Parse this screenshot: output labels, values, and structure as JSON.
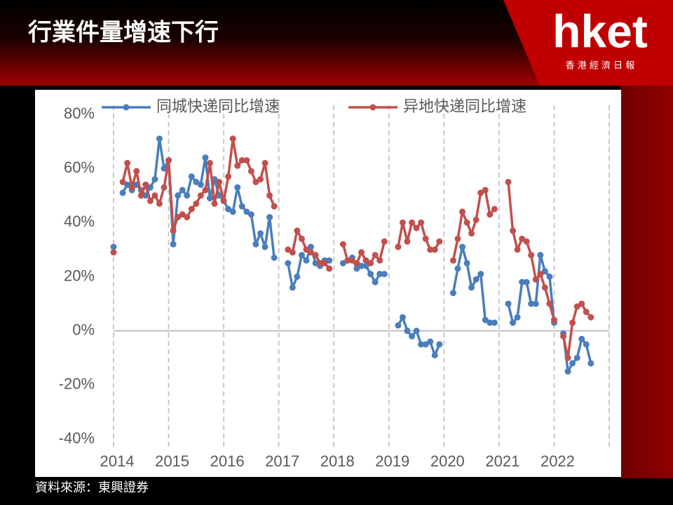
{
  "header": {
    "title": "行業件量增速下行",
    "logo": "hket",
    "logo_subtitle": "香 港 經 濟 日 報"
  },
  "chart_data": {
    "type": "line",
    "x": [
      2014,
      2014.083,
      2014.167,
      2014.25,
      2014.333,
      2014.417,
      2014.5,
      2014.583,
      2014.667,
      2014.75,
      2014.833,
      2014.917,
      2015,
      2015.083,
      2015.167,
      2015.25,
      2015.333,
      2015.417,
      2015.5,
      2015.583,
      2015.667,
      2015.75,
      2015.833,
      2015.917,
      2016,
      2016.083,
      2016.167,
      2016.25,
      2016.333,
      2016.417,
      2016.5,
      2016.583,
      2016.667,
      2016.75,
      2016.833,
      2016.917,
      2017,
      2017.083,
      2017.167,
      2017.25,
      2017.333,
      2017.417,
      2017.5,
      2017.583,
      2017.667,
      2017.75,
      2017.833,
      2017.917,
      2018,
      2018.083,
      2018.167,
      2018.25,
      2018.333,
      2018.417,
      2018.5,
      2018.583,
      2018.667,
      2018.75,
      2018.833,
      2018.917,
      2019,
      2019.083,
      2019.167,
      2019.25,
      2019.333,
      2019.417,
      2019.5,
      2019.583,
      2019.667,
      2019.75,
      2019.833,
      2019.917,
      2020,
      2020.083,
      2020.167,
      2020.25,
      2020.333,
      2020.417,
      2020.5,
      2020.583,
      2020.667,
      2020.75,
      2020.833,
      2020.917,
      2021,
      2021.083,
      2021.167,
      2021.25,
      2021.333,
      2021.417,
      2021.5,
      2021.583,
      2021.667,
      2021.75,
      2021.833,
      2021.917,
      2022,
      2022.083,
      2022.167,
      2022.25,
      2022.333,
      2022.417,
      2022.5,
      2022.583,
      2022.667
    ],
    "series": [
      {
        "name": "同城快递同比增速",
        "color": "#4a7ebb",
        "values": [
          31,
          null,
          51,
          54,
          52,
          54,
          52,
          50,
          53,
          56,
          71,
          60,
          63,
          32,
          50,
          52,
          50,
          57,
          55,
          54,
          64,
          49,
          56,
          50,
          48,
          45,
          44,
          53,
          46,
          44,
          43,
          32,
          36,
          31,
          42,
          27,
          null,
          null,
          25,
          16,
          20,
          28,
          26,
          31,
          25,
          24,
          26,
          26,
          null,
          null,
          25,
          26,
          27,
          23,
          24,
          24,
          21,
          18,
          21,
          21,
          null,
          null,
          2,
          5,
          0,
          -2,
          0,
          -5,
          -5,
          -4,
          -9,
          -5,
          null,
          null,
          14,
          23,
          31,
          25,
          16,
          19,
          21,
          4,
          3,
          3,
          null,
          null,
          10,
          3,
          5,
          18,
          18,
          10,
          10,
          28,
          22,
          20,
          3,
          null,
          -1,
          -15,
          -12,
          -10,
          -3,
          -5,
          -12
        ]
      },
      {
        "name": "异地快递同比增速",
        "color": "#c0504d",
        "values": [
          29,
          null,
          55,
          62,
          53,
          59,
          50,
          54,
          48,
          50,
          47,
          53,
          63,
          37,
          42,
          43,
          42,
          45,
          47,
          50,
          52,
          62,
          47,
          55,
          48,
          57,
          71,
          61,
          63,
          63,
          59,
          55,
          56,
          62,
          50,
          46,
          null,
          null,
          30,
          29,
          37,
          34,
          30,
          29,
          28,
          25,
          25,
          23,
          null,
          null,
          32,
          26,
          26,
          25,
          29,
          26,
          25,
          28,
          26,
          33,
          null,
          null,
          31,
          40,
          33,
          40,
          38,
          40,
          34,
          30,
          30,
          33,
          null,
          null,
          26,
          34,
          44,
          40,
          36,
          41,
          51,
          52,
          43,
          45,
          null,
          null,
          55,
          37,
          30,
          34,
          33,
          28,
          19,
          21,
          16,
          10,
          4,
          null,
          -2,
          -10,
          3,
          9,
          10,
          7,
          5
        ]
      }
    ],
    "xlim": [
      2014,
      2023
    ],
    "xticks": [
      2014,
      2015,
      2016,
      2017,
      2018,
      2019,
      2020,
      2021,
      2022
    ],
    "ylim": [
      -40,
      80
    ],
    "yticks": [
      {
        "value": 80,
        "label": "80%"
      },
      {
        "value": 60,
        "label": "60%"
      },
      {
        "value": 40,
        "label": "40%"
      },
      {
        "value": 20,
        "label": "20%"
      },
      {
        "value": 0,
        "label": "0%"
      },
      {
        "value": -20,
        "label": "-20%"
      },
      {
        "value": -40,
        "label": "-40%"
      }
    ],
    "legend": "top"
  },
  "source": "資料來源：東興證券"
}
